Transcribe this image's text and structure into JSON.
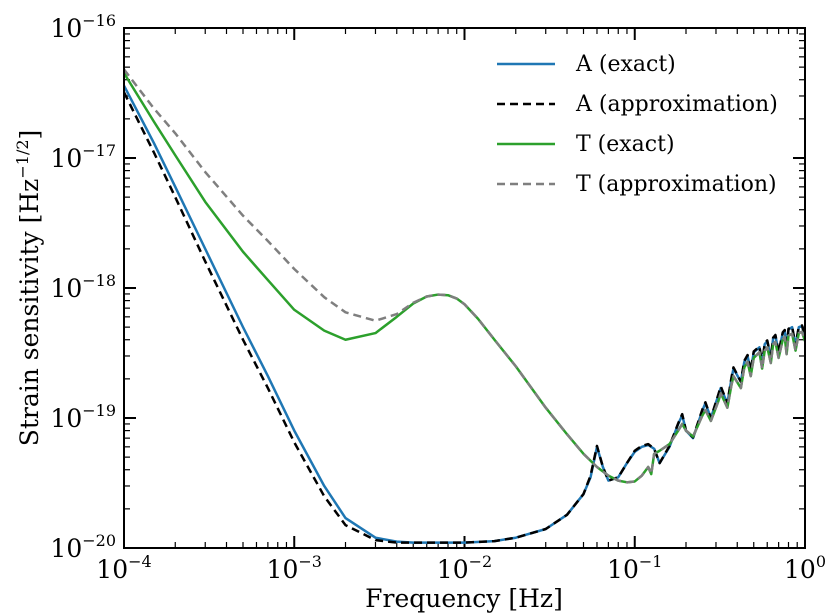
{
  "chart_data": {
    "type": "line",
    "title": "",
    "xlabel": "Frequency [Hz]",
    "ylabel_main": "Strain sensitivity [Hz",
    "ylabel_exp": "−1/2",
    "ylabel_end": "]",
    "xscale": "log",
    "yscale": "log",
    "xlim": [
      0.0001,
      1
    ],
    "ylim": [
      1e-20,
      1e-16
    ],
    "grid": false,
    "legend_position": "top-right",
    "x_ticks": [
      {
        "base": "10",
        "exp": "−4",
        "value": 0.0001
      },
      {
        "base": "10",
        "exp": "−3",
        "value": 0.001
      },
      {
        "base": "10",
        "exp": "−2",
        "value": 0.01
      },
      {
        "base": "10",
        "exp": "−1",
        "value": 0.1
      },
      {
        "base": "10",
        "exp": "0",
        "value": 1
      }
    ],
    "y_ticks": [
      {
        "base": "10",
        "exp": "−20",
        "value": 1e-20
      },
      {
        "base": "10",
        "exp": "−19",
        "value": 1e-19
      },
      {
        "base": "10",
        "exp": "−18",
        "value": 1e-18
      },
      {
        "base": "10",
        "exp": "−17",
        "value": 1e-17
      },
      {
        "base": "10",
        "exp": "−16",
        "value": 1e-16
      }
    ],
    "series": [
      {
        "name": "A (exact)",
        "color": "#1f77b4",
        "style": "solid",
        "x": [
          0.0001,
          0.00015,
          0.0002,
          0.0003,
          0.0005,
          0.0007,
          0.001,
          0.0015,
          0.002,
          0.003,
          0.004,
          0.005,
          0.007,
          0.01,
          0.015,
          0.02,
          0.03,
          0.04,
          0.05,
          0.055,
          0.06,
          0.065,
          0.07,
          0.08,
          0.09,
          0.1,
          0.11,
          0.12,
          0.13,
          0.14,
          0.16,
          0.18,
          0.19,
          0.2,
          0.22,
          0.25,
          0.26,
          0.28,
          0.31,
          0.32,
          0.35,
          0.37,
          0.38,
          0.42,
          0.44,
          0.46,
          0.48,
          0.5,
          0.54,
          0.56,
          0.58,
          0.6,
          0.63,
          0.65,
          0.67,
          0.7,
          0.74,
          0.76,
          0.78,
          0.8,
          0.84,
          0.88,
          0.92,
          0.96,
          1.0
        ],
        "y": [
          3.6e-17,
          1.3e-17,
          6e-18,
          2e-18,
          5e-19,
          2.1e-19,
          8e-20,
          3e-20,
          1.7e-20,
          1.2e-20,
          1.12e-20,
          1.1e-20,
          1.1e-20,
          1.1e-20,
          1.13e-20,
          1.2e-20,
          1.4e-20,
          1.8e-20,
          2.6e-20,
          3.5e-20,
          6e-20,
          4.2e-20,
          3.3e-20,
          3.5e-20,
          4.5e-20,
          5.5e-20,
          6e-20,
          6.2e-20,
          5.8e-20,
          4.5e-20,
          6e-20,
          9e-20,
          1.05e-19,
          8e-20,
          7e-20,
          1.15e-19,
          1.3e-19,
          1e-19,
          1.5e-19,
          1.7e-19,
          1.3e-19,
          2e-19,
          2.4e-19,
          1.9e-19,
          2.7e-19,
          3e-19,
          2.3e-19,
          3.2e-19,
          3.5e-19,
          2.6e-19,
          3.7e-19,
          3.9e-19,
          2.9e-19,
          4.1e-19,
          4.3e-19,
          3.2e-19,
          4.5e-19,
          4.7e-19,
          3.4e-19,
          4.8e-19,
          5e-19,
          3.6e-19,
          5e-19,
          5.1e-19,
          4.2e-19
        ]
      },
      {
        "name": "A (approximation)",
        "color": "#000000",
        "style": "dashed",
        "x": [
          0.0001,
          0.00015,
          0.0002,
          0.0003,
          0.0005,
          0.0007,
          0.001,
          0.0015,
          0.002,
          0.003,
          0.004,
          0.005,
          0.007,
          0.01,
          0.015,
          0.02,
          0.03,
          0.04,
          0.05,
          0.055,
          0.06,
          0.065,
          0.07,
          0.08,
          0.09,
          0.1,
          0.11,
          0.12,
          0.13,
          0.14,
          0.16,
          0.18,
          0.19,
          0.2,
          0.22,
          0.25,
          0.26,
          0.28,
          0.31,
          0.32,
          0.35,
          0.37,
          0.38,
          0.42,
          0.44,
          0.46,
          0.48,
          0.5,
          0.54,
          0.56,
          0.58,
          0.6,
          0.63,
          0.65,
          0.67,
          0.7,
          0.74,
          0.76,
          0.78,
          0.8,
          0.84,
          0.88,
          0.92,
          0.96,
          1.0
        ],
        "y": [
          3.2e-17,
          1.1e-17,
          5e-18,
          1.6e-18,
          4e-19,
          1.7e-19,
          6.5e-20,
          2.5e-20,
          1.5e-20,
          1.15e-20,
          1.1e-20,
          1.1e-20,
          1.1e-20,
          1.1e-20,
          1.13e-20,
          1.2e-20,
          1.4e-20,
          1.8e-20,
          2.6e-20,
          3.6e-20,
          6.1e-20,
          4.2e-20,
          3.3e-20,
          3.5e-20,
          4.5e-20,
          5.6e-20,
          6.1e-20,
          6.3e-20,
          5.8e-20,
          4.5e-20,
          6.1e-20,
          9.1e-20,
          1.07e-19,
          8e-20,
          7.1e-20,
          1.17e-19,
          1.32e-19,
          1e-19,
          1.52e-19,
          1.75e-19,
          1.3e-19,
          2.05e-19,
          2.45e-19,
          1.9e-19,
          2.75e-19,
          3.05e-19,
          2.3e-19,
          3.25e-19,
          3.55e-19,
          2.6e-19,
          3.75e-19,
          3.95e-19,
          2.9e-19,
          4.15e-19,
          4.35e-19,
          3.2e-19,
          4.55e-19,
          4.75e-19,
          3.4e-19,
          4.85e-19,
          5.05e-19,
          3.6e-19,
          5.05e-19,
          5.15e-19,
          4.25e-19
        ]
      },
      {
        "name": "T (exact)",
        "color": "#2ca02c",
        "style": "solid",
        "x": [
          0.0001,
          0.00015,
          0.0002,
          0.0003,
          0.0005,
          0.0007,
          0.001,
          0.0015,
          0.002,
          0.003,
          0.004,
          0.005,
          0.006,
          0.007,
          0.008,
          0.009,
          0.01,
          0.012,
          0.015,
          0.02,
          0.03,
          0.04,
          0.05,
          0.06,
          0.07,
          0.08,
          0.09,
          0.1,
          0.11,
          0.12,
          0.125,
          0.13,
          0.14,
          0.16,
          0.18,
          0.19,
          0.2,
          0.22,
          0.25,
          0.26,
          0.28,
          0.31,
          0.32,
          0.35,
          0.37,
          0.38,
          0.42,
          0.44,
          0.46,
          0.48,
          0.5,
          0.54,
          0.56,
          0.58,
          0.6,
          0.63,
          0.65,
          0.67,
          0.7,
          0.74,
          0.76,
          0.78,
          0.8,
          0.84,
          0.88,
          0.92,
          0.96,
          1.0
        ],
        "y": [
          4.5e-17,
          1.9e-17,
          1.05e-17,
          4.6e-18,
          1.9e-18,
          1.15e-18,
          6.8e-19,
          4.7e-19,
          4e-19,
          4.5e-19,
          6e-19,
          7.6e-19,
          8.6e-19,
          8.9e-19,
          8.8e-19,
          8.3e-19,
          7.5e-19,
          5.8e-19,
          4e-19,
          2.5e-19,
          1.2e-19,
          7.5e-20,
          5.3e-20,
          4.2e-20,
          3.6e-20,
          3.3e-20,
          3.2e-20,
          3.25e-20,
          3.6e-20,
          4.2e-20,
          3.7e-20,
          5.3e-20,
          5.6e-20,
          6.3e-20,
          8e-20,
          9e-20,
          8e-20,
          7.2e-20,
          1.05e-19,
          1.15e-19,
          9.5e-20,
          1.35e-19,
          1.55e-19,
          1.2e-19,
          1.8e-19,
          2.1e-19,
          1.7e-19,
          2.45e-19,
          2.7e-19,
          2.1e-19,
          2.9e-19,
          3.2e-19,
          2.4e-19,
          3.3e-19,
          3.5e-19,
          2.65e-19,
          3.7e-19,
          3.85e-19,
          2.9e-19,
          4e-19,
          4.2e-19,
          3.1e-19,
          4.3e-19,
          4.45e-19,
          3.3e-19,
          4.5e-19,
          4.6e-19,
          3.9e-19
        ]
      },
      {
        "name": "T (approximation)",
        "color": "#7f7f7f",
        "style": "dashed",
        "x": [
          0.0001,
          0.00015,
          0.0002,
          0.0003,
          0.0005,
          0.0007,
          0.001,
          0.0015,
          0.002,
          0.003,
          0.004,
          0.005,
          0.006,
          0.007,
          0.008,
          0.009,
          0.01,
          0.012,
          0.015,
          0.02,
          0.03,
          0.04,
          0.05,
          0.06,
          0.07,
          0.08,
          0.09,
          0.1,
          0.11,
          0.12,
          0.125,
          0.13,
          0.14,
          0.16,
          0.18,
          0.19,
          0.2,
          0.22,
          0.25,
          0.26,
          0.28,
          0.31,
          0.32,
          0.35,
          0.37,
          0.38,
          0.42,
          0.44,
          0.46,
          0.48,
          0.5,
          0.54,
          0.56,
          0.58,
          0.6,
          0.63,
          0.65,
          0.67,
          0.7,
          0.74,
          0.76,
          0.78,
          0.8,
          0.84,
          0.88,
          0.92,
          0.96,
          1.0
        ],
        "y": [
          4.8e-17,
          2.4e-17,
          1.55e-17,
          7.8e-18,
          3.6e-18,
          2.3e-18,
          1.4e-18,
          8.5e-19,
          6.5e-19,
          5.6e-19,
          6.3e-19,
          7.7e-19,
          8.6e-19,
          8.9e-19,
          8.8e-19,
          8.3e-19,
          7.5e-19,
          5.8e-19,
          4e-19,
          2.5e-19,
          1.2e-19,
          7.5e-20,
          5.3e-20,
          4.2e-20,
          3.6e-20,
          3.3e-20,
          3.2e-20,
          3.25e-20,
          3.6e-20,
          4.2e-20,
          3.7e-20,
          5.3e-20,
          5.6e-20,
          6.3e-20,
          8e-20,
          9e-20,
          8e-20,
          7.2e-20,
          1.05e-19,
          1.15e-19,
          9.5e-20,
          1.35e-19,
          1.55e-19,
          1.2e-19,
          1.8e-19,
          2.1e-19,
          1.7e-19,
          2.45e-19,
          2.7e-19,
          2.1e-19,
          2.9e-19,
          3.2e-19,
          2.4e-19,
          3.3e-19,
          3.5e-19,
          2.65e-19,
          3.7e-19,
          3.85e-19,
          2.9e-19,
          4e-19,
          4.2e-19,
          3.1e-19,
          4.3e-19,
          4.45e-19,
          3.3e-19,
          4.5e-19,
          4.6e-19,
          3.9e-19
        ]
      }
    ]
  }
}
